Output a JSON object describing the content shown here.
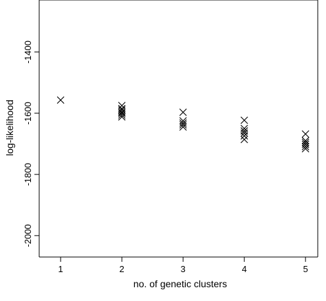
{
  "chart_data": {
    "type": "scatter",
    "title": "",
    "xlabel": "no. of genetic clusters",
    "ylabel": "log-likelihood",
    "xlim": [
      0.65,
      5.2
    ],
    "ylim": [
      -2070,
      -1230
    ],
    "x_ticks": [
      1,
      2,
      3,
      4,
      5
    ],
    "x_tick_labels": [
      "1",
      "2",
      "3",
      "4",
      "5"
    ],
    "y_ticks": [
      -1400,
      -1600,
      -1800,
      -2000
    ],
    "y_tick_labels": [
      "-1400",
      "-1600",
      "-1800",
      "-2000"
    ],
    "grid": false,
    "marker": "x",
    "series": [
      {
        "points": [
          {
            "x": 1,
            "y": -1557
          },
          {
            "x": 2,
            "y": -1575
          },
          {
            "x": 2,
            "y": -1585
          },
          {
            "x": 2,
            "y": -1590
          },
          {
            "x": 2,
            "y": -1596
          },
          {
            "x": 2,
            "y": -1600
          },
          {
            "x": 2,
            "y": -1606
          },
          {
            "x": 2,
            "y": -1612
          },
          {
            "x": 3,
            "y": -1597
          },
          {
            "x": 3,
            "y": -1625
          },
          {
            "x": 3,
            "y": -1632
          },
          {
            "x": 3,
            "y": -1638
          },
          {
            "x": 3,
            "y": -1645
          },
          {
            "x": 4,
            "y": -1623
          },
          {
            "x": 4,
            "y": -1650
          },
          {
            "x": 4,
            "y": -1658
          },
          {
            "x": 4,
            "y": -1665
          },
          {
            "x": 4,
            "y": -1674
          },
          {
            "x": 4,
            "y": -1686
          },
          {
            "x": 5,
            "y": -1668
          },
          {
            "x": 5,
            "y": -1690
          },
          {
            "x": 5,
            "y": -1696
          },
          {
            "x": 5,
            "y": -1702
          },
          {
            "x": 5,
            "y": -1709
          },
          {
            "x": 5,
            "y": -1716
          }
        ]
      }
    ]
  }
}
